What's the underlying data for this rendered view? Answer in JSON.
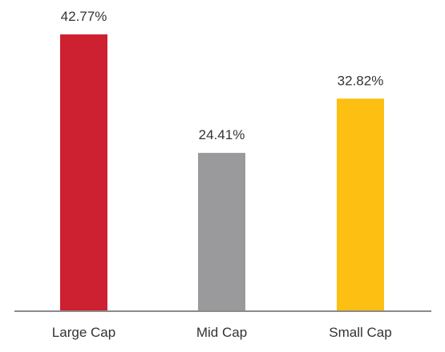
{
  "chart_data": {
    "type": "bar",
    "categories": [
      "Large Cap",
      "Mid Cap",
      "Small Cap"
    ],
    "values": [
      42.77,
      24.41,
      32.82
    ],
    "value_labels": [
      "42.77%",
      "24.41%",
      "32.82%"
    ],
    "colors": [
      "#cd2131",
      "#9a9a9c",
      "#fcbf12"
    ],
    "axis_color": "#8a8a8a",
    "ylim": [
      0,
      42.77
    ],
    "grid": false
  }
}
